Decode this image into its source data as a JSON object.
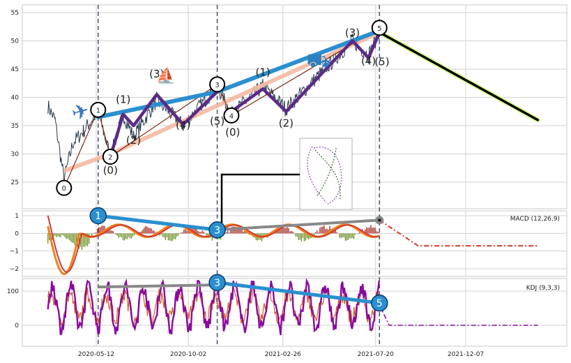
{
  "chart_data": [
    {
      "panel": "price",
      "type": "line",
      "ylim": [
        20,
        56
      ],
      "yticks": [
        25,
        30,
        35,
        40,
        45,
        50,
        55
      ],
      "grid": true,
      "wave_counts": [
        {
          "date": "2020-03-23",
          "y": 24.0,
          "label": "0"
        },
        {
          "date": "2020-05-15",
          "y": 37.8,
          "label": "1"
        },
        {
          "date": "2020-06-03",
          "y": 29.5,
          "label": "2"
        },
        {
          "date": "2020-11-16",
          "y": 42.3,
          "label": "3"
        },
        {
          "date": "2020-12-08",
          "y": 36.8,
          "label": "4"
        },
        {
          "date": "2021-07-26",
          "y": 52.3,
          "label": "5"
        }
      ],
      "sub_waves": [
        {
          "date": "2020-06-03",
          "y": 26.5,
          "label": "(0)"
        },
        {
          "date": "2020-06-23",
          "y": 39.0,
          "label": "(1)"
        },
        {
          "date": "2020-07-09",
          "y": 31.8,
          "label": "(2)"
        },
        {
          "date": "2020-08-14",
          "y": 43.5,
          "label": "(3)"
        },
        {
          "date": "2020-09-24",
          "y": 34.5,
          "label": "(4)"
        },
        {
          "date": "2020-11-16",
          "y": 35.2,
          "label": "(5)"
        },
        {
          "date": "2020-12-10",
          "y": 33.2,
          "label": "(0)"
        },
        {
          "date": "2021-01-26",
          "y": 43.8,
          "label": "(1)"
        },
        {
          "date": "2021-03-03",
          "y": 34.8,
          "label": "(2)"
        },
        {
          "date": "2021-06-14",
          "y": 50.8,
          "label": "(3)"
        },
        {
          "date": "2021-07-09",
          "y": 45.8,
          "label": "(4)"
        },
        {
          "date": "2021-07-30",
          "y": 45.7,
          "label": "(5)"
        }
      ],
      "trend_line": {
        "from": [
          "2020-05-15",
          36.5
        ],
        "via": [
          "2020-11-16",
          41.0
        ],
        "to": [
          "2021-07-26",
          51.8
        ]
      },
      "projection": {
        "from": [
          "2021-07-26",
          51.5
        ],
        "to": [
          "2022-03-29",
          36.0
        ]
      }
    },
    {
      "panel": "macd",
      "type": "line",
      "legend": "MACD (12,26,9)",
      "ylim": [
        -2.5,
        1.5
      ],
      "yticks": [
        1,
        0,
        -1,
        -2
      ],
      "markers": [
        {
          "date": "2020-05-15",
          "y": 1.0,
          "label": "1"
        },
        {
          "date": "2020-11-16",
          "y": 0.2,
          "label": "3"
        }
      ]
    },
    {
      "panel": "kdj",
      "type": "line",
      "legend": "KDJ (9,3,3)",
      "ylim": [
        -60,
        140
      ],
      "yticks": [
        100,
        0
      ],
      "markers": [
        {
          "date": "2020-11-16",
          "y": 125,
          "label": "3"
        },
        {
          "date": "2021-07-26",
          "y": 65,
          "label": "5"
        }
      ]
    }
  ],
  "x_axis": {
    "ticks": [
      "2020-05-12",
      "2020-10-02",
      "2021-02-26",
      "2021-07-20",
      "2021-12-07"
    ]
  },
  "event_dates": [
    "2020-05-15",
    "2020-11-16",
    "2021-07-26"
  ],
  "colors": {
    "trend": "#2a8fd0",
    "wave": "#5b2a86",
    "projection": "#000000",
    "projection_glow": "#d9ff8a",
    "macd_line": "#f08020",
    "signal_line": "#d23a2a",
    "hist_pos": "#a3271f",
    "hist_neg": "#6b8e23",
    "kdj_j": "#8a0aa0",
    "kdj_k": "#d2601a",
    "grid": "#d0d0d0",
    "price": "#2a3a4a"
  },
  "icons": [
    "airplane-icon",
    "scooter-icon",
    "car-icon"
  ]
}
